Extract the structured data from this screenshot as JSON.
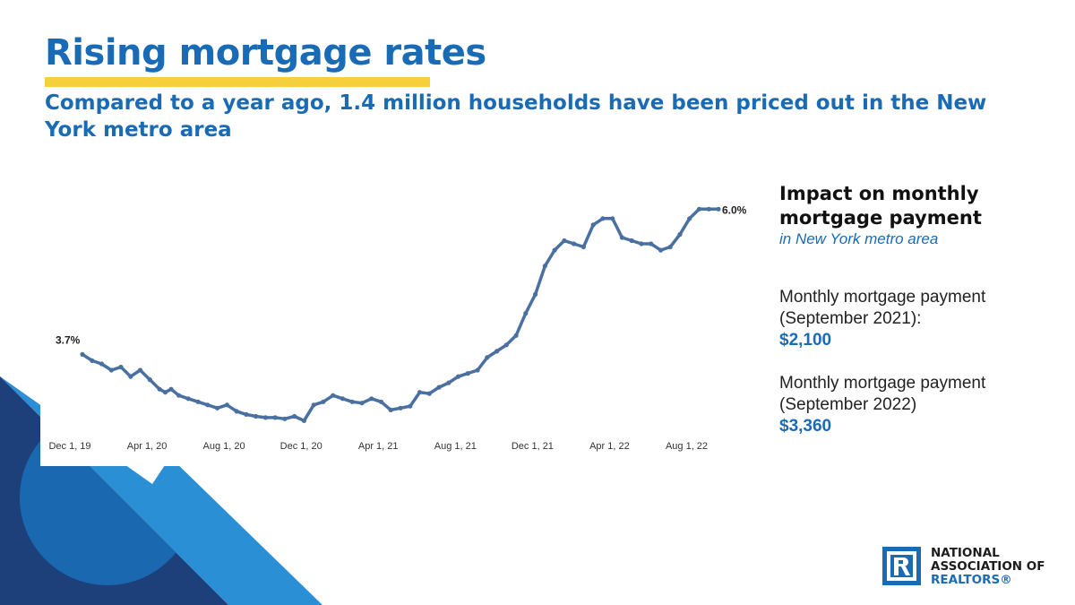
{
  "header": {
    "title": "Rising mortgage rates",
    "subtitle": "Compared to a year ago, 1.4 million households have been priced out in the New York metro area"
  },
  "sidebar": {
    "heading": "Impact on monthly mortgage payment",
    "subheading": "in New York metro area",
    "stats": [
      {
        "label": "Monthly mortgage payment (September 2021):",
        "value": "$2,100"
      },
      {
        "label": "Monthly mortgage payment (September 2022)",
        "value": "$3,360"
      }
    ]
  },
  "logo": {
    "line1": "NATIONAL",
    "line2": "ASSOCIATION OF",
    "line3": "REALTORS®"
  },
  "colors": {
    "accent": "#1a6bb5",
    "highlight": "#f5cf3c",
    "line": "#4a6fa1",
    "deco_dark": "#1d3f7a",
    "deco_mid": "#1a68b0",
    "deco_light": "#2b8fd6"
  },
  "chart_data": {
    "type": "line",
    "x_tick_labels": [
      "Dec 1, 19",
      "Apr 1, 20",
      "Aug 1, 20",
      "Dec 1, 20",
      "Apr 1, 21",
      "Aug 1, 21",
      "Dec 1, 21",
      "Apr 1, 22",
      "Aug 1, 22"
    ],
    "x_unit": "months since Dec 1, 19",
    "ylim": [
      2.5,
      6.5
    ],
    "grid": false,
    "markers": true,
    "annotations": [
      {
        "text": "3.7%",
        "x": 0,
        "y": 3.7
      },
      {
        "text": "6.0%",
        "x": 33,
        "y": 6.0
      }
    ],
    "series": [
      {
        "name": "",
        "x": [
          0,
          0.5,
          1,
          1.5,
          2,
          2.5,
          3,
          3.5,
          4,
          4.3,
          4.6,
          5,
          5.5,
          6,
          6.5,
          7,
          7.5,
          8,
          8.5,
          9,
          9.5,
          10,
          10.5,
          11,
          11.5,
          12,
          12.5,
          13,
          13.5,
          14,
          14.5,
          15,
          15.5,
          16,
          16.5,
          17,
          17.5,
          18,
          18.5,
          19,
          19.5,
          20,
          20.5,
          21,
          21.5,
          22,
          22.5,
          23,
          23.5,
          24,
          24.5,
          25,
          25.5,
          26,
          26.5,
          27,
          27.5,
          28,
          28.5,
          29,
          29.5,
          30,
          30.5,
          31,
          31.5,
          32,
          32.5,
          33
        ],
        "values": [
          3.7,
          3.6,
          3.55,
          3.45,
          3.5,
          3.35,
          3.45,
          3.3,
          3.15,
          3.1,
          3.15,
          3.05,
          3.0,
          2.95,
          2.9,
          2.85,
          2.9,
          2.8,
          2.75,
          2.72,
          2.7,
          2.7,
          2.68,
          2.72,
          2.65,
          2.9,
          2.95,
          3.05,
          3.0,
          2.95,
          2.93,
          3.0,
          2.95,
          2.82,
          2.85,
          2.88,
          3.1,
          3.08,
          3.18,
          3.25,
          3.35,
          3.4,
          3.45,
          3.65,
          3.75,
          3.85,
          4.0,
          4.35,
          4.65,
          5.1,
          5.35,
          5.5,
          5.45,
          5.4,
          5.75,
          5.85,
          5.85,
          5.55,
          5.5,
          5.45,
          5.45,
          5.35,
          5.4,
          5.6,
          5.85,
          6.0,
          6.0,
          6.0
        ]
      }
    ]
  }
}
